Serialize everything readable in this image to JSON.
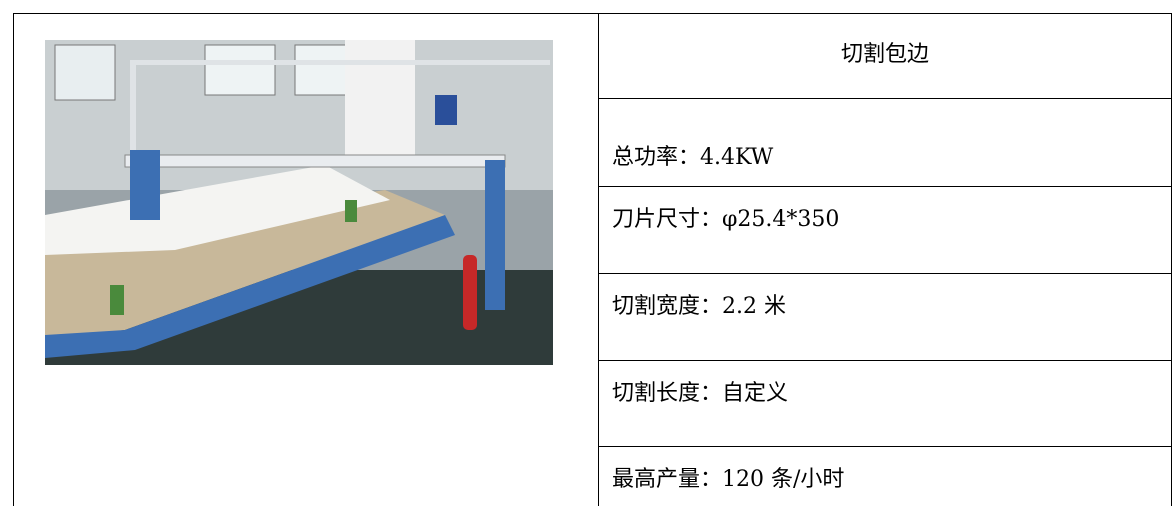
{
  "table": {
    "title": "切割包边",
    "rows": [
      "总功率：4.4KW",
      "刀片尺寸：φ25.4*350",
      "切割宽度：2.2 米",
      "切割长度：自定义",
      "最高产量：120 条/小时"
    ]
  }
}
